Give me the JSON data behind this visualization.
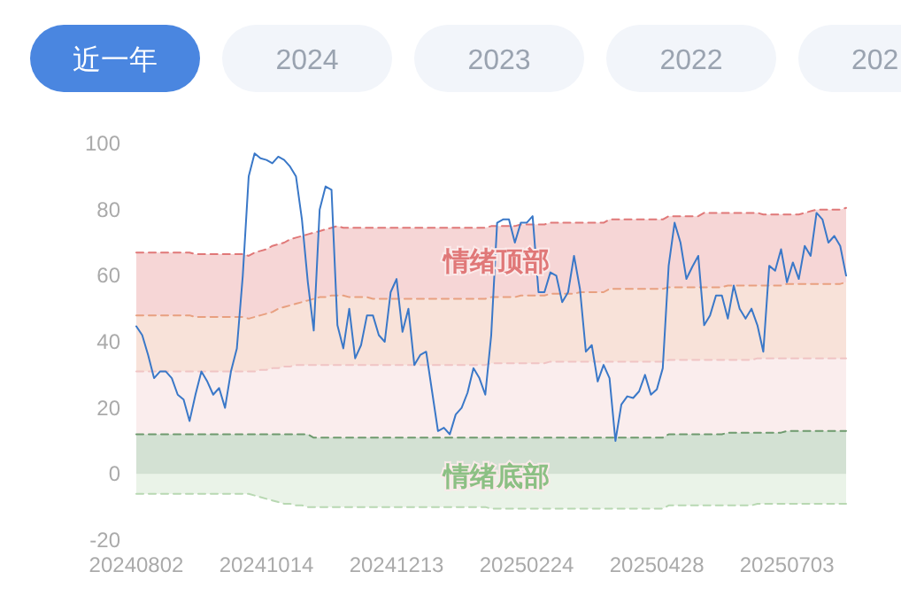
{
  "chart_data": {
    "type": "line",
    "categories": [
      "20240802",
      null,
      null,
      null,
      null,
      null,
      null,
      null,
      null,
      null,
      null,
      null,
      null,
      null,
      null,
      null,
      null,
      null,
      null,
      null,
      null,
      null,
      "20241014",
      null,
      null,
      null,
      null,
      null,
      null,
      null,
      null,
      null,
      null,
      null,
      null,
      null,
      null,
      null,
      null,
      null,
      null,
      null,
      null,
      null,
      "20241213",
      null,
      null,
      null,
      null,
      null,
      null,
      null,
      null,
      null,
      null,
      null,
      null,
      null,
      null,
      null,
      null,
      null,
      null,
      null,
      null,
      null,
      "20250224",
      null,
      null,
      null,
      null,
      null,
      null,
      null,
      null,
      null,
      null,
      null,
      null,
      null,
      null,
      null,
      null,
      null,
      null,
      null,
      null,
      null,
      "20250428",
      null,
      null,
      null,
      null,
      null,
      null,
      null,
      null,
      null,
      null,
      null,
      null,
      null,
      null,
      null,
      null,
      null,
      null,
      null,
      null,
      null,
      "20250703",
      null,
      null,
      null,
      null,
      null,
      null,
      null,
      null,
      null,
      null
    ],
    "series": [
      {
        "type": "area",
        "color": "#e07878",
        "line_style": "dashed",
        "values": [
          67,
          67,
          67,
          67,
          67,
          67,
          67,
          67,
          67,
          67,
          66.5,
          66.5,
          66.5,
          66.5,
          66.5,
          66.5,
          66.5,
          66.5,
          66.5,
          66,
          67,
          67.5,
          68,
          69,
          69.5,
          70,
          71,
          71.5,
          72,
          72.5,
          73,
          73.5,
          74,
          74.5,
          75,
          74.5,
          74.5,
          74.5,
          74.5,
          74.5,
          74.5,
          74.5,
          74.5,
          74.5,
          74.5,
          74.5,
          74.5,
          74.5,
          74.5,
          74.5,
          74.5,
          74.5,
          74.5,
          74.5,
          74.5,
          74.5,
          74.5,
          74.5,
          74.5,
          74.5,
          75,
          75,
          75,
          75,
          75,
          75.5,
          75.5,
          75.5,
          75.5,
          75.5,
          76,
          76,
          76,
          76,
          76,
          76,
          76,
          76,
          76,
          76,
          77,
          77,
          77,
          77,
          77,
          77,
          77,
          77,
          77,
          77,
          78,
          78,
          78,
          78,
          78,
          78,
          79,
          79,
          79,
          79,
          79,
          79,
          79,
          79,
          79,
          79,
          78.5,
          78.5,
          78.5,
          78.5,
          78.5,
          78.5,
          78.5,
          79,
          79.5,
          80,
          80,
          80,
          80,
          80,
          80.5
        ]
      },
      {
        "type": "area",
        "color": "#e8a080",
        "line_style": "dashed",
        "values": [
          48,
          48,
          48,
          48,
          48,
          48,
          48,
          48,
          48,
          48,
          47.5,
          47.5,
          47.5,
          47.5,
          47.5,
          47.5,
          47.5,
          47.5,
          47.5,
          47,
          47.5,
          48,
          48.5,
          49,
          50,
          50.5,
          51,
          51.5,
          52,
          52.5,
          53,
          53.5,
          53.5,
          54,
          54,
          54,
          53.5,
          53.5,
          53.5,
          53.5,
          53,
          53,
          53,
          53,
          53,
          53,
          53,
          53,
          53,
          53,
          53,
          53,
          53,
          53,
          53,
          53,
          53,
          53,
          53,
          53,
          53.5,
          53.5,
          53.5,
          53.5,
          53.5,
          54,
          54,
          54,
          54,
          54,
          54.5,
          54.5,
          54.5,
          54.5,
          54.5,
          55,
          55,
          55,
          55,
          55,
          56,
          56,
          56,
          56,
          56,
          56,
          56,
          56,
          56,
          56,
          56.5,
          56.5,
          56.5,
          56.5,
          56.5,
          56.5,
          56.5,
          56.5,
          56.5,
          56.5,
          57,
          57,
          57,
          57,
          57,
          57,
          57,
          57,
          57,
          57,
          57.5,
          57.5,
          57.5,
          57.5,
          57.5,
          57.5,
          57.5,
          57.5,
          57.5,
          57.5,
          58
        ]
      },
      {
        "type": "area",
        "color": "#f0c4c4",
        "line_style": "dashed",
        "values": [
          31,
          31,
          31,
          31,
          31,
          31,
          31,
          31,
          31,
          31,
          31,
          31,
          31,
          31,
          31,
          31,
          31,
          31,
          31,
          31,
          31,
          31.5,
          31.5,
          32,
          32,
          32.5,
          32.5,
          33,
          33,
          33,
          33,
          33,
          33,
          33,
          33,
          33,
          33,
          33,
          33,
          33,
          33,
          33,
          33,
          33,
          33,
          33,
          33,
          33,
          33,
          33,
          33,
          33,
          33,
          33,
          33,
          33,
          33,
          33,
          33,
          33,
          33.5,
          33.5,
          33.5,
          33.5,
          33.5,
          33.5,
          33.5,
          33.5,
          33.5,
          33.5,
          34,
          34,
          34,
          34,
          34,
          34,
          34,
          34,
          34,
          34,
          34,
          34,
          34,
          34,
          34,
          34,
          34,
          34,
          34,
          34,
          34.5,
          34.5,
          34.5,
          34.5,
          34.5,
          34.5,
          34.5,
          34.5,
          34.5,
          34.5,
          34.5,
          34.5,
          34.5,
          34.5,
          34.5,
          35,
          35,
          35,
          35,
          35,
          35,
          35,
          35,
          35,
          35,
          35,
          35,
          35,
          35,
          35,
          35
        ]
      },
      {
        "type": "area",
        "color": "#6e9a6e",
        "line_style": "dashed",
        "values": [
          12,
          12,
          12,
          12,
          12,
          12,
          12,
          12,
          12,
          12,
          12,
          12,
          12,
          12,
          12,
          12,
          12,
          12,
          12,
          12,
          12,
          12,
          12,
          12,
          12,
          12,
          12,
          12,
          12,
          12,
          11,
          11,
          11,
          11,
          11,
          11,
          11,
          11,
          11,
          11,
          11,
          11,
          11,
          11,
          11,
          11,
          11,
          11,
          11,
          11,
          11,
          11,
          11,
          11,
          11,
          11,
          11,
          11,
          11,
          11,
          11,
          11,
          11,
          11,
          11,
          11,
          11,
          11,
          11,
          11,
          11,
          11,
          11,
          11,
          11,
          11,
          11,
          11,
          11,
          11,
          11,
          11,
          11,
          11,
          11,
          11,
          11,
          11,
          11,
          11,
          12,
          12,
          12,
          12,
          12,
          12,
          12,
          12,
          12,
          12,
          12.5,
          12.5,
          12.5,
          12.5,
          12.5,
          12.5,
          12.5,
          12.5,
          12.5,
          12.5,
          13,
          13,
          13,
          13,
          13,
          13,
          13,
          13,
          13,
          13,
          13
        ]
      },
      {
        "type": "area",
        "color": "#b8d8b2",
        "line_style": "dashed",
        "values": [
          -6,
          -6,
          -6,
          -6,
          -6,
          -6,
          -6,
          -6,
          -6,
          -6,
          -6,
          -6,
          -6,
          -6,
          -6,
          -6,
          -6,
          -6,
          -6,
          -6,
          -6.5,
          -7,
          -7.5,
          -8,
          -8.5,
          -9,
          -9,
          -9.5,
          -9.5,
          -10,
          -10,
          -10,
          -10,
          -10,
          -10,
          -10,
          -10,
          -10,
          -10,
          -10,
          -10,
          -10,
          -10,
          -10,
          -10,
          -10,
          -10,
          -10,
          -10,
          -10,
          -10,
          -10,
          -10,
          -10,
          -10,
          -10,
          -10,
          -10,
          -10,
          -10,
          -10.5,
          -10.5,
          -10.5,
          -10.5,
          -10.5,
          -10.5,
          -10.5,
          -10.5,
          -10.5,
          -10.5,
          -10.5,
          -10.5,
          -10.5,
          -10.5,
          -10.5,
          -10.5,
          -10.5,
          -10.5,
          -10.5,
          -10.5,
          -10.5,
          -10.5,
          -10.5,
          -10.5,
          -10.5,
          -10.5,
          -10.5,
          -10.5,
          -10.5,
          -10.5,
          -9.5,
          -9.5,
          -9.5,
          -9.5,
          -9.5,
          -9.5,
          -9.5,
          -9.5,
          -9.5,
          -9.5,
          -9.5,
          -9.5,
          -9.5,
          -9.5,
          -9.5,
          -9,
          -9,
          -9,
          -9,
          -9,
          -9,
          -9,
          -9,
          -9,
          -9,
          -9,
          -9,
          -9,
          -9,
          -9,
          -9
        ]
      },
      {
        "color": "#3a78c8",
        "line_style": "solid",
        "values": [
          44.7,
          42,
          36,
          29,
          31,
          31,
          29,
          24,
          22.5,
          16,
          24,
          31,
          28,
          24,
          26,
          20,
          31,
          38,
          60,
          90,
          97,
          95.5,
          95,
          94,
          96,
          95,
          93,
          90,
          77,
          58,
          43.4,
          80,
          87,
          86,
          45,
          38,
          50,
          35,
          39,
          48,
          48,
          42,
          40,
          55,
          59,
          43,
          50,
          33,
          36,
          37,
          25,
          13,
          14,
          12,
          18,
          20,
          24.6,
          32,
          29,
          24,
          42,
          76,
          77,
          77,
          70,
          76,
          76,
          78,
          55,
          55,
          61,
          60,
          52,
          55,
          66,
          56,
          37,
          39,
          28,
          33,
          29,
          10,
          21,
          23.5,
          23,
          25,
          30,
          24,
          25.6,
          32,
          63,
          76,
          70,
          59,
          62.7,
          66,
          45,
          48,
          54,
          54,
          47,
          57,
          50,
          47,
          50,
          45,
          37,
          63,
          61.5,
          68,
          58,
          64,
          59,
          69,
          66,
          79,
          77,
          70,
          72,
          69,
          60
        ]
      }
    ],
    "ylim": [
      -20,
      100
    ],
    "yticks": [
      -20,
      0,
      20,
      40,
      60,
      80,
      100
    ],
    "grid": false,
    "marker": "none",
    "annotations": [
      "近一年",
      "2024",
      "2023",
      "2022",
      "202",
      {
        "text": "情绪顶部",
        "y": 67
      },
      {
        "text": "情绪底部",
        "y": 2
      }
    ]
  }
}
